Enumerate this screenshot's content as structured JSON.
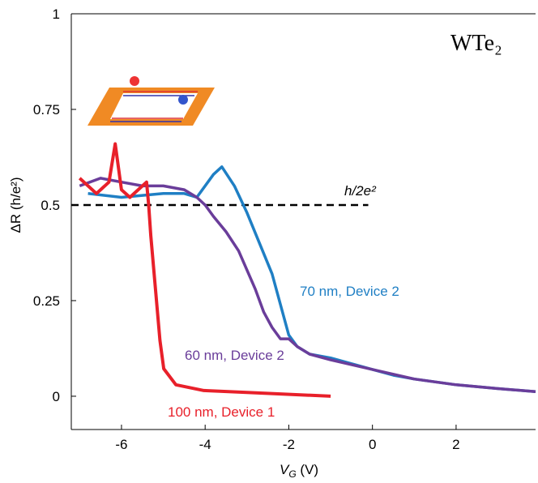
{
  "chart_data": {
    "type": "line",
    "title": "WTe₂",
    "y_label": "ΔR (h/e²)",
    "x_label": {
      "symbol": "V",
      "subscript": "G",
      "unit": " (V)"
    },
    "xlim": [
      -7.2,
      3.9
    ],
    "ylim": [
      -0.087,
      1
    ],
    "xticks": [
      -6,
      -4,
      -2,
      0,
      2
    ],
    "yticks": [
      0,
      {
        "value": 0.25,
        "label": "0.25"
      },
      {
        "value": 0.5,
        "label": "0.5"
      },
      {
        "value": 0.75,
        "label": "0.75"
      },
      1
    ],
    "reference_line": {
      "y": 0.5,
      "x_end": -0.1,
      "label": "h/2e²"
    },
    "series": [
      {
        "name": "70 nm, Device 2",
        "color": "#1f7fc4",
        "x": [
          -6.8,
          -6,
          -5,
          -4.5,
          -4.2,
          -3.8,
          -3.6,
          -3.3,
          -3.0,
          -2.7,
          -2.4,
          -2.2,
          -2.0,
          -1.8,
          -1.5,
          -1.0,
          -0.5,
          0,
          0.5,
          1,
          2,
          3,
          3.9
        ],
        "values": [
          0.53,
          0.52,
          0.53,
          0.53,
          0.52,
          0.58,
          0.6,
          0.55,
          0.48,
          0.4,
          0.32,
          0.24,
          0.16,
          0.13,
          0.11,
          0.1,
          0.085,
          0.07,
          0.055,
          0.045,
          0.03,
          0.02,
          0.012
        ]
      },
      {
        "name": "60 nm, Device 2",
        "color": "#6a3d9a",
        "x": [
          -7,
          -6.5,
          -6,
          -5.5,
          -5,
          -4.5,
          -4.2,
          -4.0,
          -3.8,
          -3.5,
          -3.2,
          -3.0,
          -2.8,
          -2.6,
          -2.4,
          -2.2,
          -2.0,
          -1.8,
          -1.5,
          -1,
          0,
          1,
          2,
          3,
          3.9
        ],
        "values": [
          0.55,
          0.57,
          0.56,
          0.55,
          0.55,
          0.54,
          0.52,
          0.5,
          0.47,
          0.43,
          0.38,
          0.33,
          0.28,
          0.22,
          0.18,
          0.15,
          0.15,
          0.13,
          0.11,
          0.095,
          0.07,
          0.045,
          0.03,
          0.02,
          0.012
        ]
      },
      {
        "name": "100 nm, Device 1",
        "color": "#e8202a",
        "x": [
          -7,
          -6.6,
          -6.3,
          -6.15,
          -6.0,
          -5.8,
          -5.5,
          -5.4,
          -5.35,
          -5.3,
          -5.18,
          -5.08,
          -4.99,
          -4.7,
          -4.03,
          -3,
          -1
        ],
        "values": [
          0.57,
          0.53,
          0.56,
          0.66,
          0.54,
          0.52,
          0.55,
          0.56,
          0.5,
          0.42,
          0.27,
          0.146,
          0.072,
          0.03,
          0.015,
          0.01,
          0.0
        ]
      }
    ]
  }
}
